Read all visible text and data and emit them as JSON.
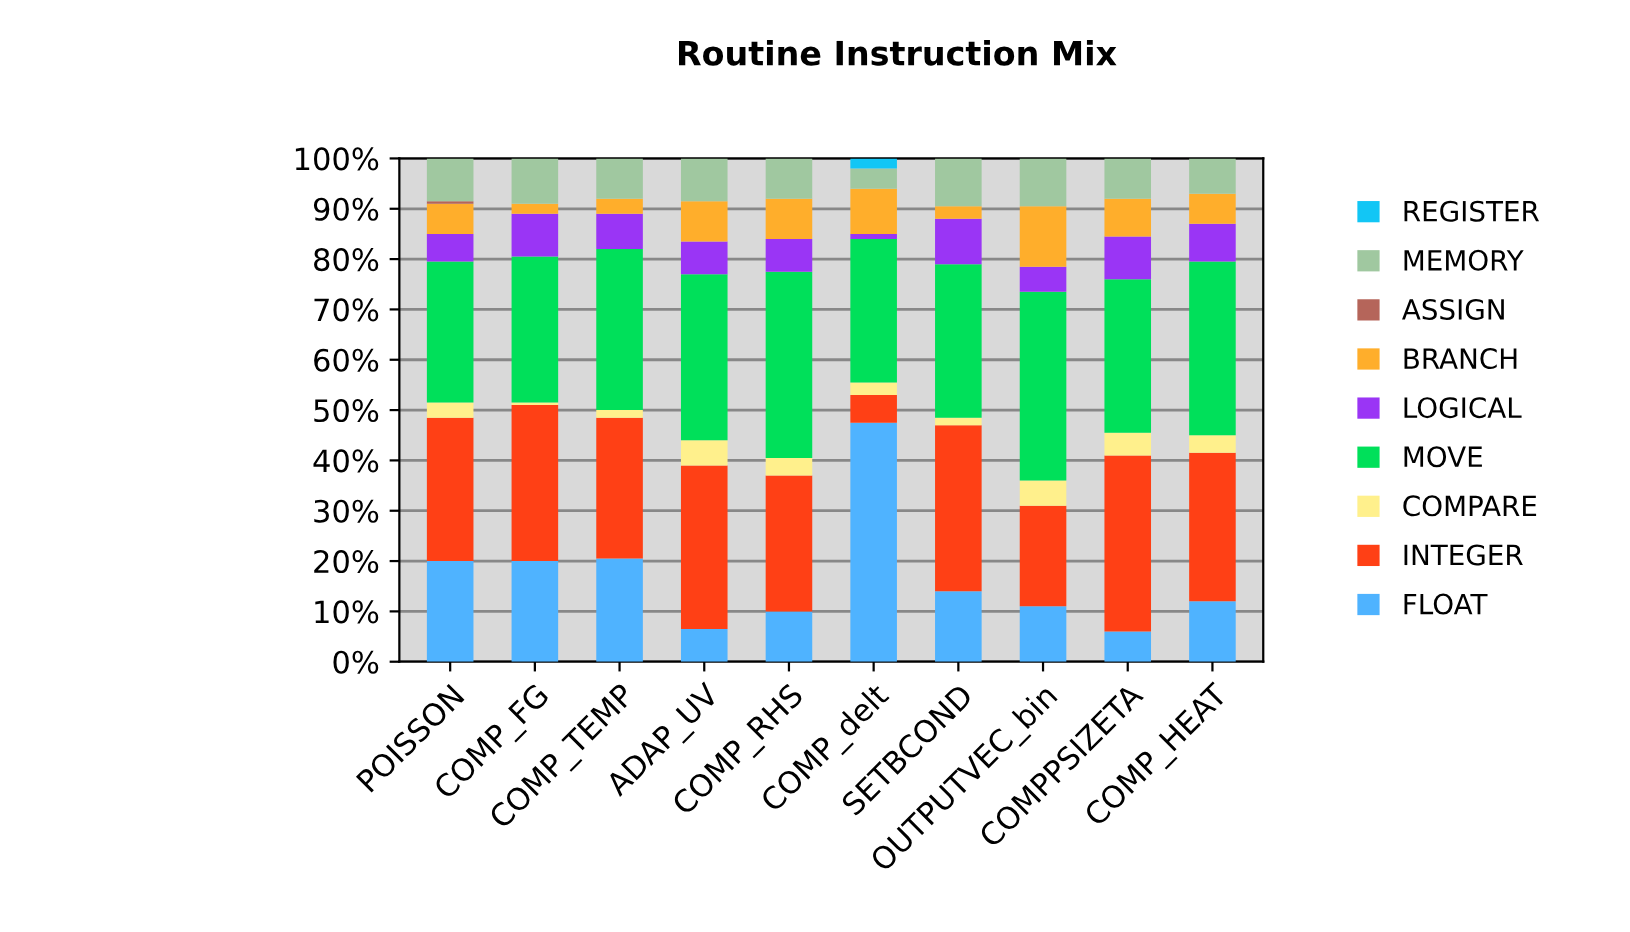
{
  "chart_data": {
    "type": "bar",
    "title": "Routine Instruction Mix",
    "stacked": true,
    "grid": "y",
    "legend": "right",
    "categories": [
      "POISSON",
      "COMP_FG",
      "COMP_TEMP",
      "ADAP_UV",
      "COMP_RHS",
      "COMP_delt",
      "SETBCOND",
      "OUTPUTVEC_bin",
      "COMPPSIZETA",
      "COMP_HEAT"
    ],
    "ylim": [
      0,
      100
    ],
    "yticks": [
      {
        "value": 0,
        "label": "0%"
      },
      {
        "value": 10,
        "label": "10%"
      },
      {
        "value": 20,
        "label": "20%"
      },
      {
        "value": 30,
        "label": "30%"
      },
      {
        "value": 40,
        "label": "40%"
      },
      {
        "value": 50,
        "label": "50%"
      },
      {
        "value": 60,
        "label": "60%"
      },
      {
        "value": 70,
        "label": "70%"
      },
      {
        "value": 80,
        "label": "80%"
      },
      {
        "value": 90,
        "label": "90%"
      },
      {
        "value": 100,
        "label": "100%"
      }
    ],
    "series": [
      {
        "name": "FLOAT",
        "color": "#4fb3ff",
        "values": [
          20,
          20,
          20.5,
          6.5,
          10,
          47.5,
          14,
          11,
          6,
          12
        ]
      },
      {
        "name": "INTEGER",
        "color": "#ff4015",
        "values": [
          28.5,
          31,
          28,
          32.5,
          27,
          5.5,
          33,
          20,
          35,
          29.5
        ]
      },
      {
        "name": "COMPARE",
        "color": "#fff08c",
        "values": [
          3,
          0.5,
          1.5,
          5,
          3.5,
          2.5,
          1.5,
          5,
          4.5,
          3.5
        ]
      },
      {
        "name": "MOVE",
        "color": "#00e05a",
        "values": [
          28,
          29,
          32,
          33,
          37,
          28.5,
          30.5,
          37.5,
          30.5,
          34.5
        ]
      },
      {
        "name": "LOGICAL",
        "color": "#9a35f5",
        "values": [
          5.5,
          8.5,
          7,
          6.5,
          6.5,
          1,
          9,
          5,
          8.5,
          7.5
        ]
      },
      {
        "name": "BRANCH",
        "color": "#ffae2b",
        "values": [
          6,
          2,
          3,
          8,
          8,
          9,
          2.5,
          12,
          7.5,
          6
        ]
      },
      {
        "name": "ASSIGN",
        "color": "#b5655a",
        "values": [
          0.5,
          0,
          0,
          0,
          0,
          0,
          0,
          0,
          0,
          0
        ]
      },
      {
        "name": "MEMORY",
        "color": "#a0c8a0",
        "values": [
          8.5,
          9,
          8,
          8.5,
          8,
          4,
          9.5,
          9.5,
          8,
          7
        ]
      },
      {
        "name": "REGISTER",
        "color": "#12c6f5",
        "values": [
          0,
          0,
          0,
          0,
          0,
          2,
          0,
          0,
          0,
          0
        ]
      }
    ]
  }
}
